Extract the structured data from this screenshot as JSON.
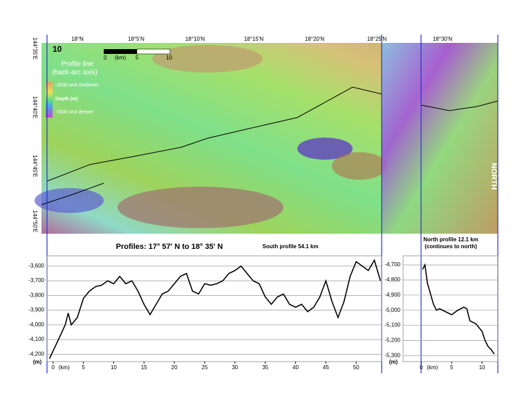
{
  "map": {
    "panel_number": "10",
    "lat_labels": [
      "18°N",
      "18°5'N",
      "18°10'N",
      "18°15'N",
      "18°20'N",
      "18°25'N",
      "18°30'N"
    ],
    "lon_labels": [
      "144°35'E",
      "144°40'E",
      "144°45'E",
      "144°50'E"
    ],
    "scale": {
      "labels": [
        "0",
        "5",
        "10"
      ],
      "unit": "(km)"
    },
    "legend": {
      "title": "Profile line",
      "subtitle": "(back-arc axis)",
      "shallow": "-3000 and shallower",
      "depth": "Depth (m)",
      "deep": "-5500 and deeper"
    },
    "north_label": "NORTH"
  },
  "header": "Profiles:  17° 57' N to 18° 35' N",
  "chart_data": [
    {
      "type": "line",
      "title": "South profile 54.1 km",
      "x_label": "(km)",
      "y_label": "(m)",
      "x": [
        -0.6,
        1,
        2,
        2.5,
        3,
        4,
        5,
        6,
        7,
        8,
        9,
        10,
        11,
        12,
        13,
        14,
        15,
        16,
        17,
        18,
        19,
        20,
        21,
        22,
        23,
        24,
        25,
        26,
        27,
        28,
        29,
        30,
        31,
        32,
        33,
        34,
        35,
        36,
        37,
        38,
        39,
        40,
        41,
        42,
        43,
        44,
        45,
        46,
        47,
        48,
        49,
        50,
        51,
        52,
        53,
        54
      ],
      "values": [
        -4230,
        -4090,
        -4000,
        -3920,
        -4000,
        -3950,
        -3820,
        -3770,
        -3740,
        -3730,
        -3700,
        -3720,
        -3670,
        -3720,
        -3700,
        -3770,
        -3860,
        -3930,
        -3860,
        -3790,
        -3770,
        -3720,
        -3670,
        -3650,
        -3770,
        -3790,
        -3720,
        -3730,
        -3720,
        -3700,
        -3650,
        -3630,
        -3600,
        -3650,
        -3700,
        -3720,
        -3810,
        -3860,
        -3810,
        -3790,
        -3860,
        -3880,
        -3860,
        -3910,
        -3880,
        -3810,
        -3700,
        -3840,
        -3950,
        -3840,
        -3670,
        -3570,
        -3600,
        -3630,
        -3560,
        -3700
      ],
      "color": "#000000",
      "xlim": [
        -1,
        54.2
      ],
      "ylim": [
        -4250,
        -3530
      ],
      "xticks": [
        0,
        5,
        10,
        15,
        20,
        25,
        30,
        35,
        40,
        45,
        50
      ],
      "yticks": [
        {
          "value": -4200,
          "label": "-4,200"
        },
        {
          "value": -4100,
          "label": "-4,100"
        },
        {
          "value": -4000,
          "label": "-4,000"
        },
        {
          "value": -3900,
          "label": "-3,900"
        },
        {
          "value": -3800,
          "label": "-3,800"
        },
        {
          "value": -3700,
          "label": "-3,700"
        },
        {
          "value": -3600,
          "label": "-3,600"
        }
      ],
      "grid": true
    },
    {
      "type": "line",
      "title": "North profile 12.1 km",
      "subtitle": "(continues to north)",
      "x_label": "(km)",
      "y_label": "(m)",
      "x": [
        0.2,
        0.6,
        1,
        1.5,
        2,
        2.5,
        3,
        4,
        5,
        6,
        7,
        7.5,
        8,
        9,
        10,
        10.5,
        11,
        11.5,
        12
      ],
      "values": [
        -4730,
        -4700,
        -4820,
        -4890,
        -4960,
        -5000,
        -4990,
        -5010,
        -5030,
        -5000,
        -4980,
        -4990,
        -5070,
        -5090,
        -5140,
        -5200,
        -5240,
        -5260,
        -5290
      ],
      "color": "#000000",
      "xlim": [
        -3,
        12.6
      ],
      "ylim": [
        -5340,
        -4640
      ],
      "xticks": [
        0,
        5,
        10
      ],
      "yticks": [
        {
          "value": -5300,
          "label": "-5,300"
        },
        {
          "value": -5200,
          "label": "-5,200"
        },
        {
          "value": -5100,
          "label": "-5,100"
        },
        {
          "value": -5000,
          "label": "-5,000"
        },
        {
          "value": -4900,
          "label": "-4,900"
        },
        {
          "value": -4800,
          "label": "-4,800"
        },
        {
          "value": -4700,
          "label": "-4,700"
        }
      ],
      "grid": true
    }
  ]
}
